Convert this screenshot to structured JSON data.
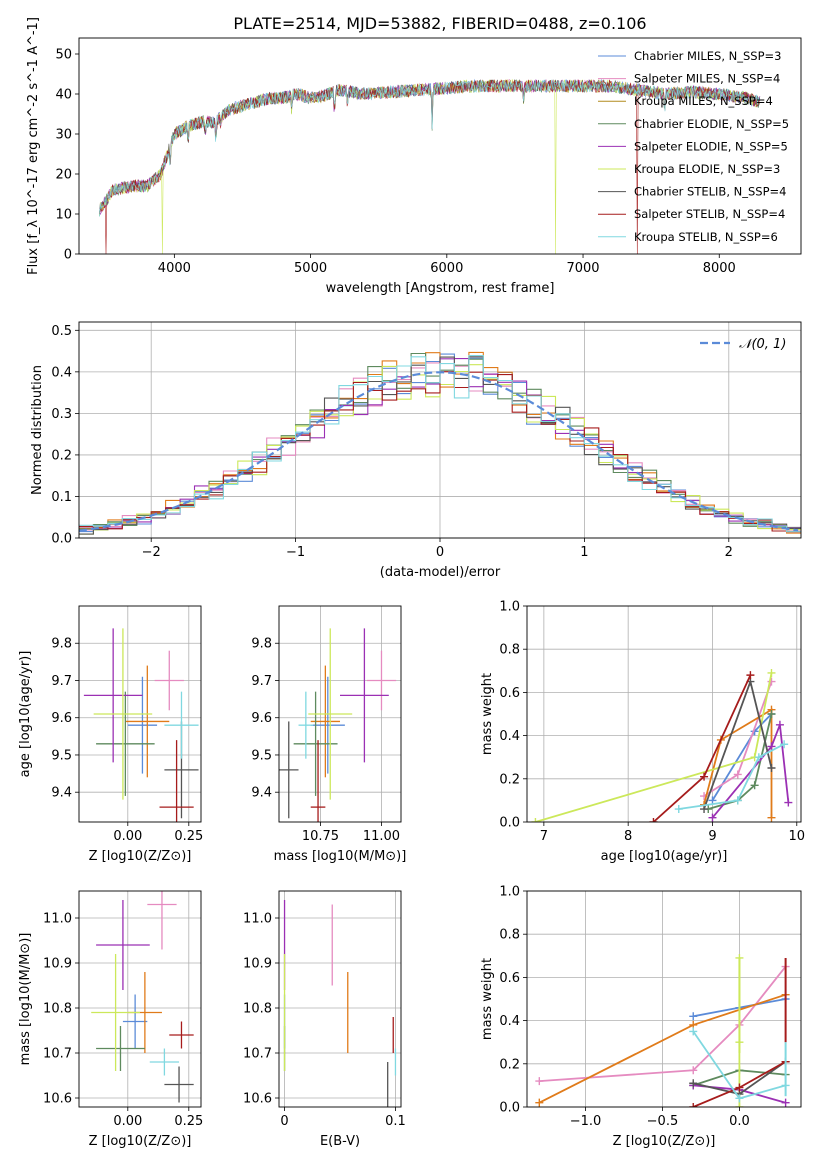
{
  "figure": {
    "title": "PLATE=2514, MJD=53882, FIBERID=0488, z=0.106"
  },
  "chart_data": [
    {
      "id": "spectrum",
      "type": "line",
      "xlabel": "wavelength [Angstrom, rest frame]",
      "ylabel": "Flux [f_λ 10^-17 erg cm^-2 s^-1 A^-1]",
      "xlim": [
        3300,
        8600
      ],
      "ylim": [
        0,
        54
      ],
      "xticks": [
        4000,
        5000,
        6000,
        7000,
        8000
      ],
      "yticks": [
        0,
        10,
        20,
        30,
        40,
        50
      ],
      "legend_position": "top-right",
      "continuum": [
        [
          3450,
          11
        ],
        [
          3550,
          16
        ],
        [
          3700,
          17
        ],
        [
          3800,
          17
        ],
        [
          3900,
          20
        ],
        [
          3950,
          25
        ],
        [
          4000,
          30
        ],
        [
          4100,
          32
        ],
        [
          4200,
          33
        ],
        [
          4300,
          33
        ],
        [
          4400,
          36
        ],
        [
          4500,
          37
        ],
        [
          4600,
          38
        ],
        [
          4700,
          39
        ],
        [
          4800,
          39
        ],
        [
          4900,
          40
        ],
        [
          5000,
          39
        ],
        [
          5100,
          39.5
        ],
        [
          5200,
          41
        ],
        [
          5400,
          40
        ],
        [
          5600,
          40.5
        ],
        [
          5800,
          41
        ],
        [
          6000,
          41.5
        ],
        [
          6200,
          42
        ],
        [
          6400,
          42
        ],
        [
          6600,
          42
        ],
        [
          6800,
          42
        ],
        [
          7000,
          42
        ],
        [
          7200,
          42
        ],
        [
          7400,
          41
        ],
        [
          7600,
          40
        ],
        [
          7800,
          40.5
        ],
        [
          8000,
          40
        ],
        [
          8200,
          39
        ],
        [
          8300,
          38
        ]
      ],
      "absorption_lines": [
        [
          3934,
          24
        ],
        [
          3969,
          22
        ],
        [
          4102,
          28
        ],
        [
          4227,
          30
        ],
        [
          4304,
          28
        ],
        [
          4341,
          32
        ],
        [
          4861,
          36
        ],
        [
          5175,
          35
        ],
        [
          5270,
          37
        ],
        [
          5892,
          32
        ],
        [
          6563,
          38
        ],
        [
          7600,
          36
        ]
      ],
      "gaps": [
        [
          3500,
          "Salpeter STELIB"
        ],
        [
          3910,
          "Kroupa ELODIE"
        ],
        [
          6800,
          "Kroupa ELODIE"
        ],
        [
          7400,
          "Salpeter STELIB"
        ]
      ],
      "series": [
        {
          "name": "Chabrier MILES, N_SSP=3",
          "color": "#5b8bd8"
        },
        {
          "name": "Salpeter MILES, N_SSP=4",
          "color": "#e58bc0"
        },
        {
          "name": "Kroupa MILES, N_SSP=4",
          "color": "#b28b1f"
        },
        {
          "name": "Chabrier ELODIE, N_SSP=5",
          "color": "#5e8a5e"
        },
        {
          "name": "Salpeter ELODIE, N_SSP=5",
          "color": "#9b30b4"
        },
        {
          "name": "Kroupa ELODIE, N_SSP=3",
          "color": "#cce85a"
        },
        {
          "name": "Chabrier STELIB, N_SSP=4",
          "color": "#555555"
        },
        {
          "name": "Salpeter STELIB, N_SSP=4",
          "color": "#a61c1c"
        },
        {
          "name": "Kroupa STELIB, N_SSP=6",
          "color": "#80d8e0"
        }
      ]
    },
    {
      "id": "residuals",
      "type": "histogram",
      "xlabel": "(data-model)/error",
      "ylabel": "Normed distribution",
      "xlim": [
        -2.5,
        2.5
      ],
      "ylim": [
        0,
        0.52
      ],
      "xticks": [
        -2,
        -1,
        0,
        1,
        2
      ],
      "yticks": [
        0.0,
        0.1,
        0.2,
        0.3,
        0.4,
        0.5
      ],
      "grid": true,
      "legend_position": "top-right",
      "legend": "𝒩(0, 1)",
      "reference_curve": {
        "type": "gaussian",
        "mean": 0,
        "sigma": 1,
        "color": "#5b8bd8"
      },
      "bin_width": 0.1,
      "series_colors": [
        "#5b8bd8",
        "#e58bc0",
        "#e07b1a",
        "#5e8a5e",
        "#9b30b4",
        "#cce85a",
        "#555555",
        "#a61c1c",
        "#80d8e0"
      ]
    },
    {
      "id": "z-age",
      "type": "errorbar",
      "xlabel": "Z [log10(Z/Z⊙)]",
      "ylabel": "age  [log10(age/yr)]",
      "xlim": [
        -0.2,
        0.3
      ],
      "ylim": [
        9.32,
        9.9
      ],
      "xticks": [
        0.0,
        0.25
      ],
      "yticks": [
        9.4,
        9.5,
        9.6,
        9.7,
        9.8
      ],
      "grid": true,
      "points": [
        {
          "x": 0.06,
          "y": 9.58,
          "xerr": 0.06,
          "yerr": 0.13,
          "color": "#5b8bd8"
        },
        {
          "x": 0.17,
          "y": 9.7,
          "xerr": 0.06,
          "yerr": 0.08,
          "color": "#e58bc0"
        },
        {
          "x": 0.08,
          "y": 9.59,
          "xerr": 0.09,
          "yerr": 0.15,
          "color": "#e07b1a"
        },
        {
          "x": -0.01,
          "y": 9.53,
          "xerr": 0.12,
          "yerr": 0.14,
          "color": "#5e8a5e"
        },
        {
          "x": -0.06,
          "y": 9.66,
          "xerr": 0.12,
          "yerr": 0.18,
          "color": "#9b30b4"
        },
        {
          "x": -0.02,
          "y": 9.61,
          "xerr": 0.12,
          "yerr": 0.23,
          "color": "#cce85a"
        },
        {
          "x": 0.22,
          "y": 9.46,
          "xerr": 0.07,
          "yerr": 0.13,
          "color": "#555555"
        },
        {
          "x": 0.2,
          "y": 9.36,
          "xerr": 0.07,
          "yerr": 0.18,
          "color": "#a61c1c"
        },
        {
          "x": 0.22,
          "y": 9.58,
          "xerr": 0.07,
          "yerr": 0.09,
          "color": "#80d8e0"
        }
      ]
    },
    {
      "id": "mass-age",
      "type": "errorbar",
      "xlabel": "mass [log10(M/M⊙)]",
      "ylabel": "",
      "xlim": [
        10.58,
        11.08
      ],
      "ylim": [
        9.32,
        9.9
      ],
      "xticks": [
        10.75,
        11.0
      ],
      "yticks": [
        9.4,
        9.5,
        9.6,
        9.7,
        9.8
      ],
      "grid": true,
      "points": [
        {
          "x": 10.78,
          "y": 9.58,
          "xerr": 0.07,
          "yerr": 0.13,
          "color": "#5b8bd8"
        },
        {
          "x": 11.0,
          "y": 9.7,
          "xerr": 0.06,
          "yerr": 0.08,
          "color": "#e58bc0"
        },
        {
          "x": 10.77,
          "y": 9.59,
          "xerr": 0.06,
          "yerr": 0.15,
          "color": "#e07b1a"
        },
        {
          "x": 10.73,
          "y": 9.53,
          "xerr": 0.09,
          "yerr": 0.14,
          "color": "#5e8a5e"
        },
        {
          "x": 10.93,
          "y": 9.66,
          "xerr": 0.1,
          "yerr": 0.18,
          "color": "#9b30b4"
        },
        {
          "x": 10.79,
          "y": 9.61,
          "xerr": 0.09,
          "yerr": 0.23,
          "color": "#cce85a"
        },
        {
          "x": 10.62,
          "y": 9.46,
          "xerr": 0.04,
          "yerr": 0.13,
          "color": "#555555"
        },
        {
          "x": 10.74,
          "y": 9.36,
          "xerr": 0.03,
          "yerr": 0.18,
          "color": "#a61c1c"
        },
        {
          "x": 10.69,
          "y": 9.58,
          "xerr": 0.03,
          "yerr": 0.09,
          "color": "#80d8e0"
        }
      ]
    },
    {
      "id": "age-weight",
      "type": "line",
      "xlabel": "age  [log10(age/yr)]",
      "ylabel": "mass weight",
      "xlim": [
        6.8,
        10.05
      ],
      "ylim": [
        0,
        1.0
      ],
      "xticks": [
        7,
        8,
        9,
        10
      ],
      "yticks": [
        0.0,
        0.2,
        0.4,
        0.6,
        0.8,
        1.0
      ],
      "grid": true,
      "series": [
        {
          "color": "#5b8bd8",
          "x": [
            9.0,
            9.5,
            9.7
          ],
          "y": [
            0.1,
            0.42,
            0.5
          ]
        },
        {
          "color": "#e58bc0",
          "x": [
            8.9,
            9.3,
            9.7
          ],
          "y": [
            0.12,
            0.22,
            0.65
          ]
        },
        {
          "color": "#e07b1a",
          "x": [
            8.9,
            9.1,
            9.7,
            9.7
          ],
          "y": [
            0.08,
            0.38,
            0.52,
            0.02
          ]
        },
        {
          "color": "#5e8a5e",
          "x": [
            8.95,
            9.3,
            9.5,
            9.7
          ],
          "y": [
            0.06,
            0.1,
            0.17,
            0.5
          ]
        },
        {
          "color": "#9b30b4",
          "x": [
            9.0,
            9.7,
            9.8,
            9.9
          ],
          "y": [
            0.02,
            0.35,
            0.45,
            0.09
          ]
        },
        {
          "color": "#cce85a",
          "x": [
            6.9,
            9.5,
            9.7
          ],
          "y": [
            0.0,
            0.3,
            0.69
          ]
        },
        {
          "color": "#555555",
          "x": [
            8.9,
            9.45,
            9.7
          ],
          "y": [
            0.06,
            0.65,
            0.25
          ]
        },
        {
          "color": "#a61c1c",
          "x": [
            8.3,
            8.9,
            9.45
          ],
          "y": [
            0.0,
            0.21,
            0.68
          ]
        },
        {
          "color": "#80d8e0",
          "x": [
            8.6,
            9.3,
            9.55,
            9.85
          ],
          "y": [
            0.06,
            0.1,
            0.3,
            0.36
          ]
        }
      ]
    },
    {
      "id": "z-mass",
      "type": "errorbar",
      "xlabel": "Z [log10(Z/Z⊙)]",
      "ylabel": "mass [log10(M/M⊙)]",
      "xlim": [
        -0.2,
        0.3
      ],
      "ylim": [
        10.58,
        11.06
      ],
      "xticks": [
        0.0,
        0.25
      ],
      "yticks": [
        10.6,
        10.7,
        10.8,
        10.9,
        11.0
      ],
      "grid": true,
      "points": [
        {
          "x": 0.03,
          "y": 10.77,
          "xerr": 0.05,
          "yerr": 0.06,
          "color": "#5b8bd8"
        },
        {
          "x": 0.14,
          "y": 11.03,
          "xerr": 0.06,
          "yerr": 0.1,
          "color": "#e58bc0"
        },
        {
          "x": 0.07,
          "y": 10.79,
          "xerr": 0.07,
          "yerr": 0.09,
          "color": "#e07b1a"
        },
        {
          "x": -0.03,
          "y": 10.71,
          "xerr": 0.1,
          "yerr": 0.05,
          "color": "#5e8a5e"
        },
        {
          "x": -0.02,
          "y": 10.94,
          "xerr": 0.11,
          "yerr": 0.1,
          "color": "#9b30b4"
        },
        {
          "x": -0.05,
          "y": 10.79,
          "xerr": 0.1,
          "yerr": 0.13,
          "color": "#cce85a"
        },
        {
          "x": 0.21,
          "y": 10.63,
          "xerr": 0.06,
          "yerr": 0.04,
          "color": "#555555"
        },
        {
          "x": 0.22,
          "y": 10.74,
          "xerr": 0.05,
          "yerr": 0.03,
          "color": "#a61c1c"
        },
        {
          "x": 0.15,
          "y": 10.68,
          "xerr": 0.06,
          "yerr": 0.03,
          "color": "#80d8e0"
        }
      ]
    },
    {
      "id": "ebv-mass",
      "type": "errorbar",
      "xlabel": "E(B-V)",
      "ylabel": "",
      "xlim": [
        -0.005,
        0.105
      ],
      "ylim": [
        10.58,
        11.06
      ],
      "xticks": [
        0.0,
        0.1
      ],
      "yticks": [
        10.6,
        10.7,
        10.8,
        10.9,
        11.0
      ],
      "grid": true,
      "points": [
        {
          "x": 0.0,
          "y": 10.77,
          "yerr": 0.06,
          "color": "#5b8bd8"
        },
        {
          "x": 0.043,
          "y": 10.94,
          "yerr": 0.09,
          "color": "#e58bc0"
        },
        {
          "x": 0.057,
          "y": 10.79,
          "yerr": 0.09,
          "color": "#e07b1a"
        },
        {
          "x": 0.0,
          "y": 10.71,
          "yerr": 0.05,
          "color": "#5e8a5e"
        },
        {
          "x": 0.0,
          "y": 10.94,
          "yerr": 0.1,
          "color": "#9b30b4"
        },
        {
          "x": 0.0,
          "y": 10.79,
          "yerr": 0.13,
          "color": "#cce85a"
        },
        {
          "x": 0.093,
          "y": 10.63,
          "yerr": 0.05,
          "color": "#555555"
        },
        {
          "x": 0.098,
          "y": 10.74,
          "yerr": 0.04,
          "color": "#a61c1c"
        },
        {
          "x": 0.1,
          "y": 10.68,
          "yerr": 0.03,
          "color": "#80d8e0"
        }
      ]
    },
    {
      "id": "z-weight",
      "type": "line",
      "xlabel": "Z [log10(Z/Z⊙)]",
      "ylabel": "mass weight",
      "xlim": [
        -1.38,
        0.4
      ],
      "ylim": [
        0,
        1.0
      ],
      "xticks": [
        -1.0,
        -0.5,
        0.0
      ],
      "yticks": [
        0.0,
        0.2,
        0.4,
        0.6,
        0.8,
        1.0
      ],
      "grid": true,
      "series": [
        {
          "color": "#5b8bd8",
          "x": [
            -0.3,
            0.0,
            0.3
          ],
          "y": [
            0.42,
            0.46,
            0.5
          ]
        },
        {
          "color": "#e58bc0",
          "x": [
            -1.3,
            -0.3,
            0.0,
            0.3
          ],
          "y": [
            0.12,
            0.17,
            0.38,
            0.65
          ]
        },
        {
          "color": "#e07b1a",
          "x": [
            -1.3,
            -0.3,
            0.3
          ],
          "y": [
            0.02,
            0.38,
            0.52
          ]
        },
        {
          "color": "#5e8a5e",
          "x": [
            -0.3,
            0.0,
            0.3
          ],
          "y": [
            0.1,
            0.17,
            0.15
          ]
        },
        {
          "color": "#9b30b4",
          "x": [
            -0.3,
            0.0,
            0.3
          ],
          "y": [
            0.1,
            0.08,
            0.02
          ]
        },
        {
          "color": "#cce85a",
          "x": [
            0.0,
            0.0,
            0.0
          ],
          "y": [
            0.69,
            0.3,
            0.0
          ]
        },
        {
          "color": "#555555",
          "x": [
            -0.3,
            0.0,
            0.3
          ],
          "y": [
            0.11,
            0.06,
            0.21
          ]
        },
        {
          "color": "#a61c1c",
          "x": [
            -0.3,
            0.0,
            0.3
          ],
          "y": [
            0.0,
            0.09,
            0.21
          ]
        },
        {
          "color": "#80d8e0",
          "x": [
            -0.3,
            0.0,
            0.3
          ],
          "y": [
            0.35,
            0.04,
            0.1
          ]
        }
      ],
      "vertical_bars": [
        {
          "x": 0.3,
          "y0": 0.3,
          "y1": 0.69,
          "color": "#a61c1c"
        },
        {
          "x": 0.3,
          "y0": 0.05,
          "y1": 0.3,
          "color": "#80d8e0"
        },
        {
          "x": 0.0,
          "y0": 0.25,
          "y1": 0.69,
          "color": "#cce85a"
        }
      ]
    }
  ]
}
